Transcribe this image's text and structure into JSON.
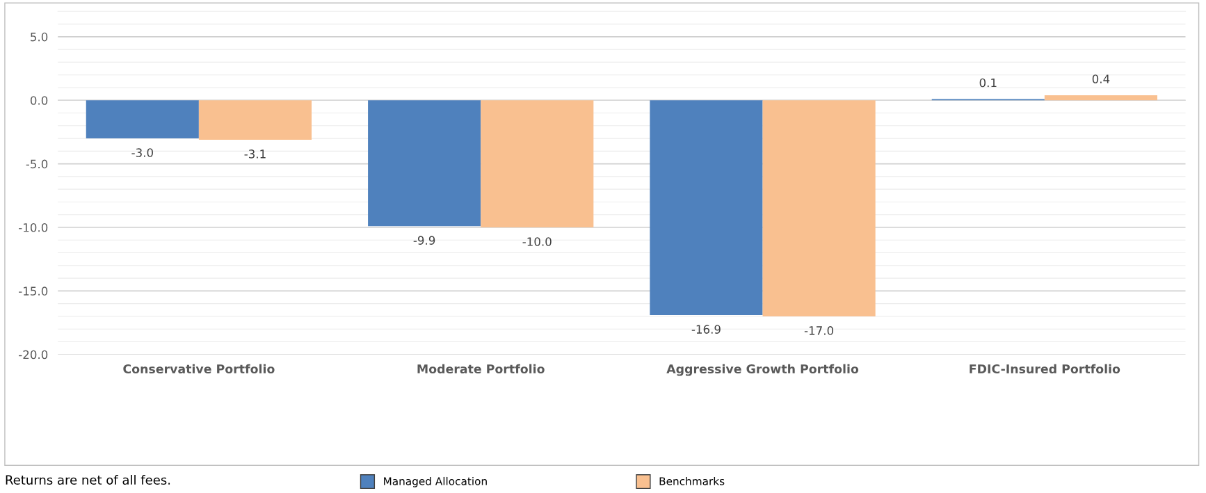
{
  "chart_data": {
    "type": "bar",
    "categories": [
      "Conservative Portfolio",
      "Moderate Portfolio",
      "Aggressive Growth Portfolio",
      "FDIC-Insured Portfolio"
    ],
    "series": [
      {
        "name": "Managed Allocation",
        "color": "#4f81bd",
        "values": [
          -3.0,
          -9.9,
          -16.9,
          0.1
        ],
        "value_labels": [
          "-3.0",
          "-9.9",
          "-16.9",
          "0.1"
        ]
      },
      {
        "name": "Benchmarks",
        "color": "#f9c090",
        "values": [
          -3.1,
          -10.0,
          -17.0,
          0.4
        ],
        "value_labels": [
          "-3.1",
          "-10.0",
          "-17.0",
          "0.4"
        ]
      }
    ],
    "ylim": [
      -20,
      7
    ],
    "yticks": [
      {
        "value": -20,
        "label": "-20.0"
      },
      {
        "value": -19,
        "label": null
      },
      {
        "value": -18,
        "label": null
      },
      {
        "value": -17,
        "label": null
      },
      {
        "value": -16,
        "label": null
      },
      {
        "value": -15,
        "label": "-15.0"
      },
      {
        "value": -14,
        "label": null
      },
      {
        "value": -13,
        "label": null
      },
      {
        "value": -12,
        "label": null
      },
      {
        "value": -11,
        "label": null
      },
      {
        "value": -10,
        "label": "-10.0"
      },
      {
        "value": -9,
        "label": null
      },
      {
        "value": -8,
        "label": null
      },
      {
        "value": -7,
        "label": null
      },
      {
        "value": -6,
        "label": null
      },
      {
        "value": -5,
        "label": "-5.0"
      },
      {
        "value": -4,
        "label": null
      },
      {
        "value": -3,
        "label": null
      },
      {
        "value": -2,
        "label": null
      },
      {
        "value": -1,
        "label": null
      },
      {
        "value": 0,
        "label": "0.0"
      },
      {
        "value": 1,
        "label": null
      },
      {
        "value": 2,
        "label": null
      },
      {
        "value": 3,
        "label": null
      },
      {
        "value": 4,
        "label": null
      },
      {
        "value": 5,
        "label": "5.0"
      },
      {
        "value": 6,
        "label": null
      }
    ],
    "grid": "y",
    "legend": "bottom",
    "annotations": [
      "Returns are net of all fees."
    ]
  }
}
